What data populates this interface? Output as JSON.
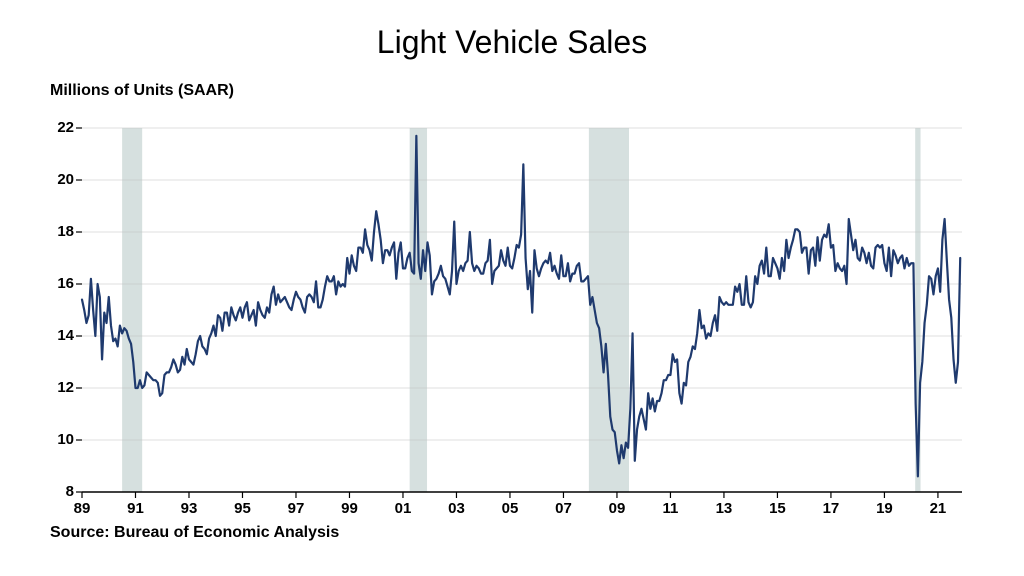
{
  "chart": {
    "type": "line",
    "title": "Light Vehicle Sales",
    "subtitle": "Millions of Units (SAAR)",
    "source": "Source: Bureau of Economic Analysis",
    "title_fontsize": 32,
    "subtitle_fontsize": 16,
    "source_fontsize": 16,
    "background_color": "#ffffff",
    "plot_background": "#ffffff",
    "recession_band_color": "#d6e0df",
    "line_color": "#1f3a6e",
    "line_width": 2.2,
    "axis_color": "#000000",
    "grid_color": "#bfbfbf",
    "grid_width": 0.5,
    "tick_label_color": "#000000",
    "tick_fontsize": 15,
    "tick_fontweight": "700",
    "x_start_year": 1989,
    "x_end_year": 2021.9,
    "xlim": [
      1989,
      2021.9
    ],
    "ylim": [
      8,
      22
    ],
    "yticks": [
      8,
      10,
      12,
      14,
      16,
      18,
      20,
      22
    ],
    "xticks": [
      1989,
      1991,
      1993,
      1995,
      1997,
      1999,
      2001,
      2003,
      2005,
      2007,
      2009,
      2011,
      2013,
      2015,
      2017,
      2019,
      2021
    ],
    "xtick_labels": [
      "89",
      "91",
      "93",
      "95",
      "97",
      "99",
      "01",
      "03",
      "05",
      "07",
      "09",
      "11",
      "13",
      "15",
      "17",
      "19",
      "21"
    ],
    "recession_bands": [
      {
        "start": 1990.5,
        "end": 1991.25
      },
      {
        "start": 2001.25,
        "end": 2001.9
      },
      {
        "start": 2007.95,
        "end": 2009.45
      },
      {
        "start": 2020.15,
        "end": 2020.35
      }
    ],
    "data_interval_months": 1,
    "series": [
      15.4,
      15.0,
      14.5,
      14.8,
      16.2,
      15.0,
      14.0,
      16.0,
      15.5,
      13.1,
      14.9,
      14.5,
      15.5,
      14.4,
      13.8,
      13.9,
      13.6,
      14.4,
      14.1,
      14.3,
      14.2,
      13.9,
      13.7,
      13.0,
      12.0,
      12.0,
      12.3,
      12.0,
      12.1,
      12.6,
      12.5,
      12.4,
      12.3,
      12.3,
      12.2,
      11.7,
      11.8,
      12.5,
      12.6,
      12.6,
      12.8,
      13.1,
      12.9,
      12.6,
      12.7,
      13.2,
      12.9,
      13.5,
      13.1,
      13.0,
      12.9,
      13.3,
      13.8,
      14.0,
      13.6,
      13.5,
      13.3,
      13.9,
      14.1,
      14.4,
      14.0,
      14.8,
      14.7,
      14.2,
      14.9,
      14.9,
      14.4,
      15.1,
      14.8,
      14.6,
      14.9,
      15.1,
      14.7,
      15.1,
      15.3,
      14.6,
      14.8,
      15.0,
      14.4,
      15.3,
      15.0,
      14.8,
      14.7,
      15.1,
      14.9,
      15.6,
      15.9,
      15.2,
      15.6,
      15.3,
      15.4,
      15.5,
      15.3,
      15.1,
      15.0,
      15.4,
      15.7,
      15.5,
      15.4,
      15.1,
      14.9,
      15.5,
      15.6,
      15.5,
      15.3,
      16.1,
      15.1,
      15.1,
      15.4,
      15.9,
      16.3,
      16.1,
      16.1,
      16.3,
      15.6,
      16.1,
      15.9,
      16.0,
      15.9,
      17.0,
      16.4,
      17.1,
      16.7,
      16.5,
      17.4,
      17.4,
      17.2,
      18.1,
      17.5,
      17.3,
      16.9,
      18.0,
      18.8,
      18.3,
      17.7,
      16.8,
      17.3,
      17.3,
      17.1,
      17.4,
      17.6,
      16.2,
      17.2,
      17.6,
      16.6,
      16.6,
      17.0,
      17.2,
      16.5,
      16.4,
      21.7,
      16.8,
      16.2,
      17.3,
      16.5,
      17.6,
      17.1,
      15.6,
      16.1,
      16.2,
      16.4,
      16.7,
      16.3,
      16.2,
      15.9,
      15.6,
      16.5,
      18.4,
      16.0,
      16.5,
      16.7,
      16.5,
      16.8,
      16.9,
      18.0,
      16.8,
      16.5,
      16.7,
      16.6,
      16.4,
      16.4,
      16.8,
      16.9,
      17.7,
      16.0,
      16.5,
      16.6,
      16.7,
      17.3,
      16.9,
      16.7,
      17.4,
      16.7,
      16.6,
      17.0,
      17.5,
      17.4,
      17.9,
      20.6,
      17.0,
      15.8,
      16.5,
      14.9,
      17.3,
      16.6,
      16.3,
      16.6,
      16.8,
      16.9,
      16.8,
      17.2,
      16.5,
      16.7,
      16.4,
      16.2,
      17.1,
      16.3,
      16.3,
      16.8,
      16.1,
      16.4,
      16.4,
      16.7,
      16.8,
      16.1,
      16.1,
      16.2,
      16.3,
      15.2,
      15.5,
      15.0,
      14.5,
      14.3,
      13.6,
      12.6,
      13.7,
      12.5,
      10.9,
      10.4,
      10.3,
      9.6,
      9.1,
      9.8,
      9.3,
      9.9,
      9.7,
      11.2,
      14.1,
      9.2,
      10.4,
      10.9,
      11.2,
      10.8,
      10.4,
      11.8,
      11.2,
      11.6,
      11.1,
      11.5,
      11.5,
      11.8,
      12.3,
      12.3,
      12.5,
      12.5,
      13.3,
      13.0,
      13.1,
      11.8,
      11.4,
      12.2,
      12.1,
      13.0,
      13.2,
      13.6,
      13.5,
      14.1,
      15.0,
      14.3,
      14.4,
      13.9,
      14.1,
      14.0,
      14.5,
      14.8,
      14.2,
      15.5,
      15.3,
      15.2,
      15.3,
      15.2,
      15.2,
      15.2,
      15.9,
      15.7,
      16.0,
      15.2,
      15.2,
      16.3,
      15.3,
      15.1,
      15.3,
      16.3,
      16.0,
      16.7,
      16.9,
      16.4,
      17.4,
      16.3,
      16.3,
      17.0,
      16.8,
      16.6,
      16.2,
      17.0,
      16.5,
      17.7,
      17.0,
      17.4,
      17.7,
      18.1,
      18.1,
      18.0,
      17.2,
      17.4,
      17.4,
      16.4,
      17.3,
      17.4,
      16.7,
      17.8,
      16.9,
      17.7,
      17.9,
      17.8,
      18.3,
      17.4,
      17.5,
      16.5,
      16.8,
      16.6,
      16.5,
      16.7,
      16.0,
      18.5,
      17.9,
      17.3,
      17.7,
      17.0,
      16.9,
      17.4,
      17.2,
      16.8,
      17.2,
      16.7,
      16.6,
      17.4,
      17.5,
      17.4,
      17.5,
      16.8,
      16.5,
      17.4,
      16.3,
      17.3,
      17.1,
      16.8,
      17.0,
      17.1,
      16.6,
      17.0,
      16.7,
      16.8,
      16.8,
      11.4,
      8.6,
      12.2,
      13.0,
      14.5,
      15.2,
      16.3,
      16.2,
      15.6,
      16.3,
      16.6,
      15.7,
      17.7,
      18.5,
      16.9,
      15.4,
      14.7,
      13.1,
      12.2,
      13.0,
      17.0
    ]
  }
}
